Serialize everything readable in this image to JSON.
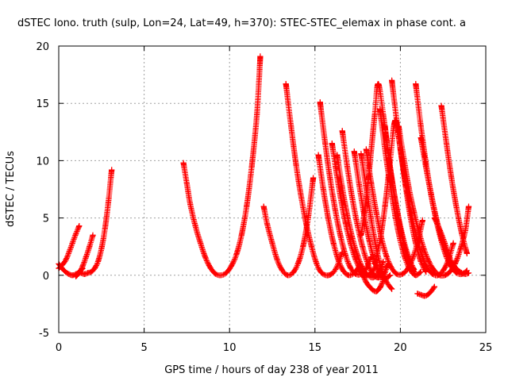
{
  "chart_data": {
    "type": "scatter",
    "title": "dSTEC Iono. truth (sulp, Lon=24, Lat=49, h=370): STEC-STEC_elemax in phase cont. a",
    "xlabel": "GPS time / hours of day 238 of year 2011",
    "ylabel": "dSTEC  / TECUs",
    "xlim": [
      0,
      25
    ],
    "ylim": [
      -5,
      20
    ],
    "x_ticks": [
      0,
      5,
      10,
      15,
      20,
      25
    ],
    "y_ticks": [
      -5,
      0,
      5,
      10,
      15,
      20
    ],
    "x_tick_labels": [
      "0",
      "5",
      "10",
      "15",
      "20",
      "25"
    ],
    "y_tick_labels": [
      "-5",
      "0",
      "5",
      "10",
      "15",
      "20"
    ],
    "grid": true,
    "marker": "+",
    "color": "#ff0000",
    "series": [
      {
        "x": [
          0.0,
          0.2,
          0.4,
          0.6,
          0.8,
          1.0,
          1.2,
          1.4
        ],
        "y": [
          1.0,
          0.6,
          0.3,
          0.1,
          0.0,
          0.1,
          0.3,
          0.6
        ]
      },
      {
        "x": [
          0.0,
          0.2,
          0.4,
          0.6,
          0.8,
          1.0,
          1.2
        ],
        "y": [
          0.6,
          0.9,
          1.3,
          2.0,
          2.8,
          3.6,
          4.3
        ]
      },
      {
        "x": [
          1.3,
          1.5,
          1.7,
          1.9,
          2.1,
          2.3,
          2.5,
          2.7,
          2.9,
          3.1
        ],
        "y": [
          0.2,
          0.1,
          0.2,
          0.3,
          0.6,
          1.2,
          2.3,
          4.0,
          6.3,
          9.2
        ]
      },
      {
        "x": [
          1.0,
          1.2,
          1.4,
          1.6,
          1.8,
          2.0
        ],
        "y": [
          -0.1,
          0.2,
          0.8,
          1.6,
          2.5,
          3.5
        ]
      },
      {
        "x": [
          7.3,
          7.5,
          7.7,
          8.0,
          8.3,
          8.6,
          8.9,
          9.2,
          9.5,
          9.8,
          10.1,
          10.4,
          10.7,
          11.0,
          11.3,
          11.6,
          11.8
        ],
        "y": [
          9.8,
          8.0,
          6.2,
          4.3,
          2.8,
          1.5,
          0.6,
          0.1,
          0.0,
          0.2,
          0.8,
          1.8,
          3.5,
          6.0,
          9.5,
          14.0,
          19.1
        ]
      },
      {
        "x": [
          12.0,
          12.2,
          12.5,
          12.8,
          13.1,
          13.4,
          13.7,
          14.0,
          14.3,
          14.6,
          14.9
        ],
        "y": [
          6.0,
          4.5,
          2.8,
          1.3,
          0.4,
          0.0,
          0.2,
          1.0,
          2.5,
          5.0,
          8.5
        ]
      },
      {
        "x": [
          13.3,
          13.6,
          13.9,
          14.2,
          14.5,
          14.8,
          15.1,
          15.4,
          15.8,
          16.2,
          16.6
        ],
        "y": [
          16.7,
          13.0,
          9.6,
          6.8,
          4.4,
          2.5,
          1.0,
          0.2,
          0.0,
          0.5,
          2.0
        ]
      },
      {
        "x": [
          15.3,
          15.6,
          15.9,
          16.2,
          16.5,
          16.8,
          17.1,
          17.4,
          17.7,
          18.0,
          18.3
        ],
        "y": [
          15.1,
          11.5,
          8.3,
          5.6,
          3.4,
          1.7,
          0.6,
          0.1,
          0.1,
          0.6,
          1.6
        ]
      },
      {
        "x": [
          15.2,
          15.5,
          15.8,
          16.1,
          16.4,
          16.7,
          17.0,
          17.3,
          17.6
        ],
        "y": [
          10.5,
          7.4,
          4.8,
          2.7,
          1.2,
          0.3,
          0.0,
          0.2,
          0.8
        ]
      },
      {
        "x": [
          16.0,
          16.2,
          16.5,
          16.8,
          17.1,
          17.4,
          17.7,
          18.0,
          18.3,
          18.6
        ],
        "y": [
          11.5,
          9.5,
          6.8,
          4.5,
          2.7,
          1.3,
          0.4,
          0.0,
          0.2,
          0.9
        ]
      },
      {
        "x": [
          16.3,
          16.6,
          16.9,
          17.2,
          17.5,
          17.8,
          18.1,
          18.4,
          18.7,
          19.0
        ],
        "y": [
          10.5,
          7.6,
          5.2,
          3.2,
          1.7,
          0.6,
          0.0,
          -0.2,
          0.2,
          1.2
        ]
      },
      {
        "x": [
          16.6,
          16.9,
          17.2,
          17.5,
          17.8,
          18.1,
          18.4,
          18.7,
          19.0,
          19.3
        ],
        "y": [
          12.6,
          9.4,
          6.6,
          4.3,
          2.4,
          1.0,
          0.1,
          -0.2,
          0.1,
          1.0
        ]
      },
      {
        "x": [
          17.3,
          17.6,
          17.9,
          18.2,
          18.5,
          18.8,
          19.1,
          19.4
        ],
        "y": [
          10.8,
          7.8,
          5.1,
          2.9,
          1.2,
          0.1,
          -0.3,
          0.0
        ]
      },
      {
        "x": [
          17.7,
          18.0,
          18.3,
          18.6,
          18.9,
          19.2,
          19.5
        ],
        "y": [
          10.6,
          7.6,
          4.8,
          2.3,
          0.5,
          -0.6,
          -1.2
        ]
      },
      {
        "x": [
          17.6,
          17.8,
          18.0,
          18.2,
          18.4,
          18.6,
          18.8,
          19.0,
          19.2
        ],
        "y": [
          0.4,
          0.0,
          -0.6,
          -1.0,
          -1.3,
          -1.4,
          -1.1,
          -0.4,
          0.8
        ]
      },
      {
        "x": [
          17.7,
          17.9,
          18.1,
          18.3,
          18.5,
          18.7,
          19.0,
          19.3,
          19.6,
          19.9,
          20.2,
          20.5,
          20.8
        ],
        "y": [
          3.5,
          5.5,
          8.0,
          11.0,
          14.0,
          16.7,
          14.0,
          10.5,
          7.5,
          5.0,
          3.0,
          1.5,
          0.5
        ]
      },
      {
        "x": [
          18.0,
          18.3,
          18.6,
          18.9,
          19.2,
          19.5,
          19.8,
          20.1,
          20.4,
          20.7,
          21.0,
          21.3
        ],
        "y": [
          11.0,
          8.0,
          5.4,
          3.2,
          1.6,
          0.6,
          0.1,
          0.1,
          0.5,
          1.4,
          2.8,
          4.8
        ]
      },
      {
        "x": [
          18.5,
          18.8,
          19.1,
          19.4,
          19.7,
          20.0,
          20.3,
          20.6,
          20.9,
          21.2,
          21.5
        ],
        "y": [
          1.0,
          3.0,
          6.0,
          10.0,
          13.5,
          11.0,
          7.8,
          5.0,
          2.8,
          1.2,
          0.3
        ]
      },
      {
        "x": [
          18.8,
          19.1,
          19.4,
          19.7,
          20.0,
          20.3,
          20.6,
          20.9,
          21.2
        ],
        "y": [
          14.5,
          11.0,
          7.9,
          5.2,
          3.0,
          1.4,
          0.4,
          0.0,
          0.3
        ]
      },
      {
        "x": [
          19.1,
          19.3,
          19.6,
          19.9,
          20.2,
          20.5,
          20.8
        ],
        "y": [
          13.0,
          10.5,
          7.4,
          4.8,
          2.7,
          1.2,
          0.3
        ]
      },
      {
        "x": [
          19.5,
          19.8,
          20.1,
          20.4,
          20.7,
          21.0,
          21.3,
          21.6,
          21.9,
          22.2,
          22.5,
          22.8,
          23.1
        ],
        "y": [
          17.0,
          13.3,
          10.0,
          7.2,
          4.9,
          3.0,
          1.6,
          0.6,
          0.1,
          0.0,
          0.4,
          1.3,
          2.8
        ]
      },
      {
        "x": [
          19.9,
          20.2,
          20.5,
          20.8,
          21.1,
          21.4,
          21.7,
          22.0,
          22.3,
          22.6,
          22.9,
          23.2,
          23.5,
          23.8,
          24.0
        ],
        "y": [
          13.0,
          10.2,
          7.6,
          5.5,
          3.7,
          2.2,
          1.1,
          0.4,
          0.0,
          0.0,
          0.3,
          1.0,
          2.2,
          3.9,
          6.0
        ]
      },
      {
        "x": [
          20.9,
          21.2,
          21.5,
          21.8,
          22.1,
          22.4,
          22.7,
          23.0,
          23.3,
          23.6,
          23.9
        ],
        "y": [
          16.7,
          13.0,
          9.8,
          7.0,
          4.8,
          3.0,
          1.6,
          0.7,
          0.2,
          0.1,
          0.4
        ]
      },
      {
        "x": [
          21.2,
          21.5,
          21.8,
          22.1,
          22.4,
          22.7,
          23.0
        ],
        "y": [
          12.0,
          9.4,
          7.1,
          5.0,
          3.3,
          2.0,
          1.0
        ]
      },
      {
        "x": [
          22.0,
          22.3,
          22.6,
          22.9,
          23.2,
          23.5,
          23.8,
          24.0
        ],
        "y": [
          5.0,
          4.0,
          2.8,
          1.5,
          0.7,
          0.3,
          0.1,
          0.2
        ]
      },
      {
        "x": [
          22.4,
          22.7,
          23.0,
          23.3,
          23.6,
          23.9
        ],
        "y": [
          14.8,
          11.5,
          8.4,
          5.8,
          3.6,
          1.9
        ]
      },
      {
        "x": [
          21.0,
          21.2,
          21.4,
          21.6,
          21.8,
          22.0
        ],
        "y": [
          -1.6,
          -1.7,
          -1.8,
          -1.7,
          -1.4,
          -1.0
        ]
      }
    ]
  }
}
